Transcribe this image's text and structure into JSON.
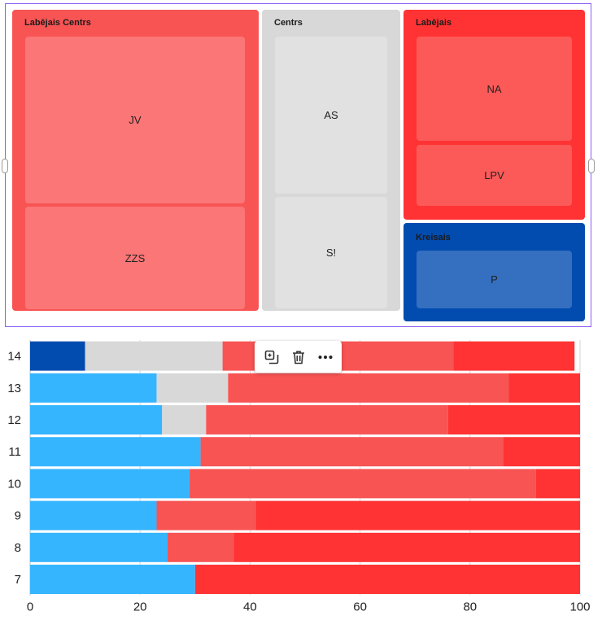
{
  "treemap": {
    "groups": [
      {
        "name": "Labējais Centrs",
        "color": "#f85454",
        "leaves": [
          {
            "name": "JV",
            "color": "#fb7676"
          },
          {
            "name": "ZZS",
            "color": "#fb7676"
          }
        ]
      },
      {
        "name": "Centrs",
        "color": "#d8d8d8",
        "leaves": [
          {
            "name": "AS",
            "color": "#e1e1e1"
          },
          {
            "name": "S!",
            "color": "#e1e1e1"
          }
        ]
      },
      {
        "name": "Labējais",
        "color": "#ff3333",
        "leaves": [
          {
            "name": "NA",
            "color": "#fc5a58"
          },
          {
            "name": "LPV",
            "color": "#fc5a58"
          }
        ]
      },
      {
        "name": "Kreisais",
        "color": "#024cb0",
        "leaves": [
          {
            "name": "P",
            "color": "#346fc0"
          }
        ]
      }
    ]
  },
  "toolbar": {
    "icons": [
      "duplicate-icon",
      "trash-icon",
      "more-icon"
    ]
  },
  "chart_data": {
    "type": "bar",
    "orientation": "horizontal",
    "stacked": true,
    "categories": [
      "14",
      "13",
      "12",
      "11",
      "10",
      "9",
      "8",
      "7"
    ],
    "series": [
      {
        "color": "#024cb0",
        "values": [
          10,
          0,
          0,
          0,
          0,
          0,
          0,
          0
        ]
      },
      {
        "color": "#36b5ff",
        "values": [
          0,
          23,
          24,
          31,
          29,
          23,
          25,
          30
        ]
      },
      {
        "color": "#d8d8d8",
        "values": [
          25,
          13,
          8,
          0,
          0,
          0,
          0,
          0
        ]
      },
      {
        "color": "#f85454",
        "values": [
          42,
          51,
          44,
          55,
          63,
          18,
          12,
          0
        ]
      },
      {
        "color": "#ff3333",
        "values": [
          22,
          13,
          24,
          14,
          8,
          59,
          63,
          70
        ]
      }
    ],
    "x_ticks": [
      0,
      20,
      40,
      60,
      80,
      100
    ],
    "xlim": [
      0,
      100
    ],
    "grid": true,
    "legend": "none"
  }
}
